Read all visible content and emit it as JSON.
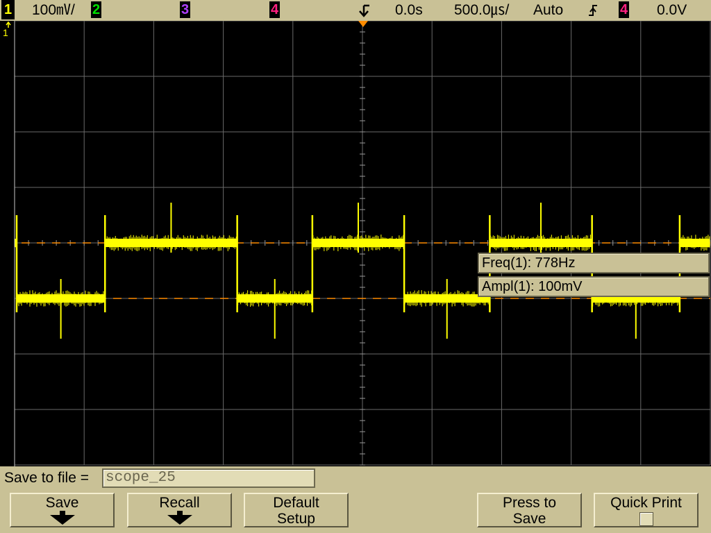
{
  "top_bar": {
    "ch1": {
      "number": "1",
      "color": "#ffff00",
      "scale": "100㎷/"
    },
    "ch2": {
      "number": "2",
      "color": "#00e000"
    },
    "ch3": {
      "number": "3",
      "color": "#b040ff"
    },
    "ch4": {
      "number": "4",
      "color": "#ff2080"
    },
    "trigger_icon": "trigger-position-icon",
    "delay": "0.0s",
    "time_scale": "500.0㎲/",
    "trigger_mode": "Auto",
    "edge_icon": "rising-edge-icon",
    "trigger_source": "4",
    "trigger_level": "0.0V"
  },
  "screen": {
    "ground_marker": "1",
    "colors": {
      "grid": "#6a6a6a",
      "trace": "#ffff00",
      "cursor": "#ff8c00",
      "trigger_marker": "#ff8c00"
    },
    "measurements": {
      "freq": "Freq(1): 778Hz",
      "ampl": "Ampl(1): 100mV"
    }
  },
  "bottom": {
    "save_label": "Save to file =",
    "filename": "scope_25",
    "softkeys": {
      "save": "Save",
      "recall": "Recall",
      "default_setup_line1": "Default",
      "default_setup_line2": "Setup",
      "press_to_save_line1": "Press to",
      "press_to_save_line2": "Save",
      "quick_print": "Quick Print"
    }
  },
  "chart_data": {
    "type": "line",
    "title": "",
    "xlabel": "",
    "ylabel": "",
    "time_per_div_s": 0.0005,
    "volts_per_div": 0.1,
    "xlim_div": [
      -5,
      5
    ],
    "ylim_div": [
      -4,
      4
    ],
    "grid": true,
    "series": [
      {
        "channel": 1,
        "waveform": "square",
        "frequency_hz": 778,
        "amplitude_v": 0.1,
        "high_level_div": 0,
        "low_level_div": -1,
        "transitions_div": [
          -4.97,
          -3.7,
          -1.8,
          -0.72,
          0.6,
          1.83,
          3.3,
          4.56
        ]
      }
    ]
  }
}
